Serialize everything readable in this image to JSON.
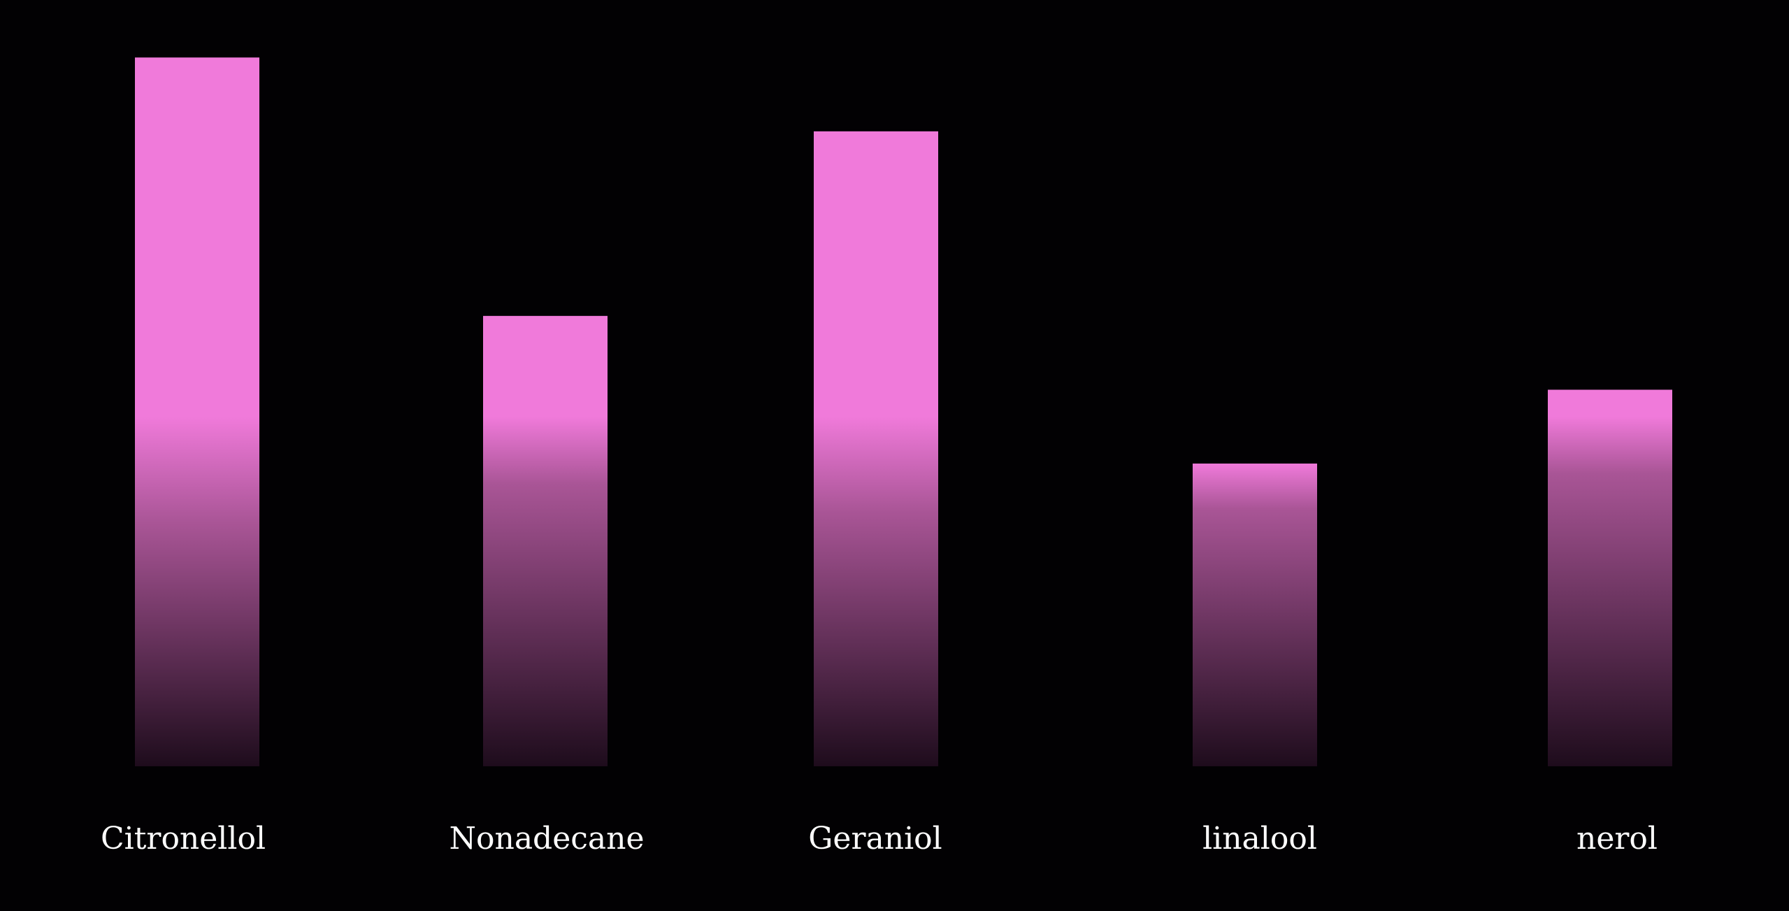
{
  "chart_data": {
    "type": "bar",
    "title": "",
    "xlabel": "",
    "ylabel": "",
    "categories": [
      "Citronellol",
      "Nonadecane",
      "Geraniol",
      "linalool",
      "nerol"
    ],
    "values": [
      96,
      61,
      86,
      41,
      51
    ],
    "ylim": [
      0,
      100
    ],
    "grid": false,
    "legend": "none",
    "colors": {
      "background": "#020103",
      "bar_top": "#f07ada",
      "bar_bottom": "#1e0c1c",
      "label": "#ffffff"
    }
  }
}
